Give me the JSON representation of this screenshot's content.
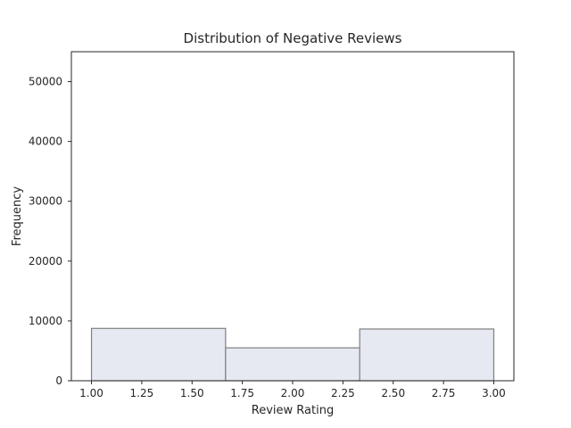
{
  "chart_data": {
    "type": "bar",
    "title": "Distribution of Negative Reviews",
    "xlabel": "Review Rating",
    "ylabel": "Frequency",
    "xlim": [
      0.9,
      3.1
    ],
    "ylim": [
      0,
      55000
    ],
    "xticks": [
      "1.00",
      "1.25",
      "1.50",
      "1.75",
      "2.00",
      "2.25",
      "2.50",
      "2.75",
      "3.00"
    ],
    "yticks": [
      "0",
      "10000",
      "20000",
      "30000",
      "40000",
      "50000"
    ],
    "bins": [
      {
        "start": 1.0,
        "end": 1.6667,
        "value": 8750
      },
      {
        "start": 1.6667,
        "end": 2.3333,
        "value": 5500
      },
      {
        "start": 2.3333,
        "end": 3.0,
        "value": 8650
      }
    ],
    "grid": false,
    "bar_color": "#e6e8f2",
    "bar_edge_color": "#7f7f7f"
  }
}
